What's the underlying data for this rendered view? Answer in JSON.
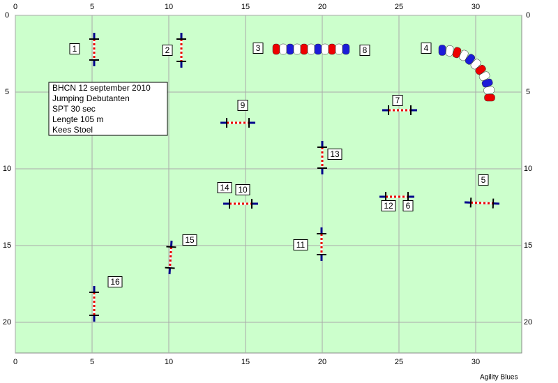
{
  "axes": {
    "xticks": [
      0,
      5,
      10,
      15,
      20,
      25,
      30
    ],
    "yticks": [
      0,
      5,
      10,
      15,
      20
    ]
  },
  "info": [
    "BHCN 12 september 2010",
    "Jumping Debutanten",
    "SPT 30 sec",
    "Lengte 105 m",
    "Kees Stoel"
  ],
  "labels": [
    "1",
    "2",
    "3",
    "8",
    "4",
    "9",
    "7",
    "13",
    "14",
    "10",
    "5",
    "12",
    "6",
    "15",
    "11",
    "16"
  ],
  "footer": "Agility Blues"
}
